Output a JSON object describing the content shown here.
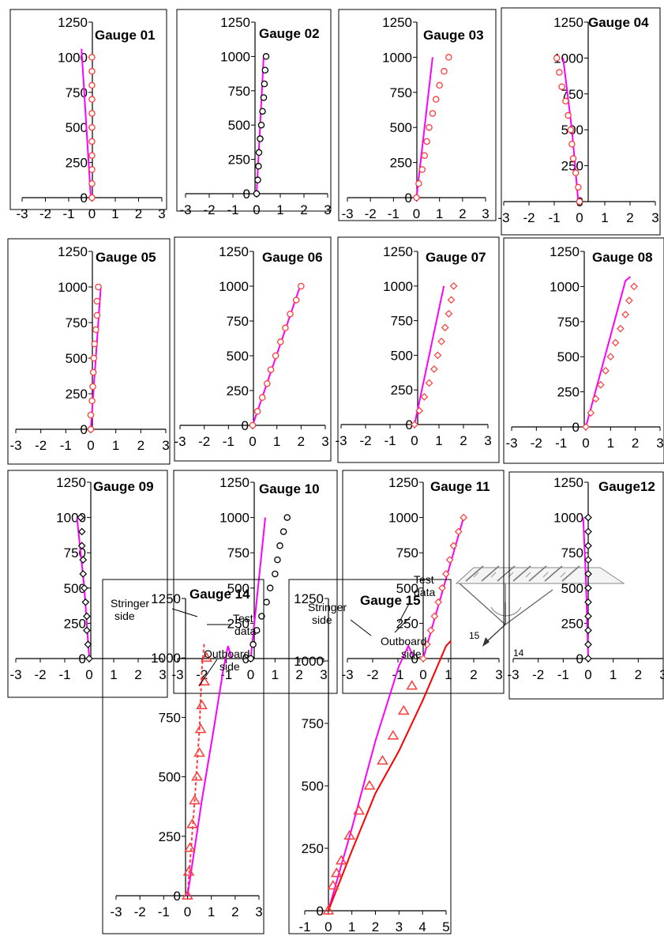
{
  "sketch": {
    "labels": [
      "15",
      "14"
    ]
  },
  "chart_data": [
    {
      "type": "scatter",
      "title": "Gauge 01",
      "xlim": [
        -3,
        3
      ],
      "ylim": [
        0,
        1250
      ],
      "xticks": [
        "-3",
        "-2",
        "-1",
        "0",
        "1",
        "2",
        "3"
      ],
      "yticks": [
        "0",
        "250",
        "500",
        "750",
        "1000",
        "1250"
      ],
      "grid": false,
      "colors": {
        "line": "#ff00ff",
        "marker": "#ff3b3b"
      },
      "markers": "circle",
      "series": [
        {
          "kind": "line",
          "x": [
            -0.05,
            -0.45
          ],
          "y": [
            0,
            1060
          ]
        },
        {
          "kind": "points",
          "x": [
            0,
            0,
            0,
            0,
            0,
            0,
            0,
            0,
            0,
            0,
            0
          ],
          "y": [
            0,
            100,
            200,
            300,
            400,
            500,
            600,
            700,
            800,
            900,
            1000
          ]
        }
      ]
    },
    {
      "type": "scatter",
      "title": "Gauge 02",
      "xlim": [
        -3,
        3
      ],
      "ylim": [
        0,
        1250
      ],
      "xticks": [
        "-3",
        "-2",
        "-1",
        "0",
        "1",
        "2",
        "3"
      ],
      "yticks": [
        "0",
        "250",
        "500",
        "750",
        "1000",
        "1250"
      ],
      "grid": false,
      "colors": {
        "line": "#ff00ff",
        "marker": "#000000"
      },
      "markers": "circle",
      "series": [
        {
          "kind": "line",
          "x": [
            0,
            0.3
          ],
          "y": [
            0,
            1000
          ]
        },
        {
          "kind": "points",
          "x": [
            0,
            0.05,
            0.08,
            0.1,
            0.15,
            0.2,
            0.25,
            0.3,
            0.33,
            0.36,
            0.4
          ],
          "y": [
            0,
            100,
            200,
            300,
            400,
            500,
            600,
            700,
            800,
            900,
            1000
          ]
        }
      ]
    },
    {
      "type": "scatter",
      "title": "Gauge 03",
      "xlim": [
        -3,
        3
      ],
      "ylim": [
        0,
        1250
      ],
      "xticks": [
        "-3",
        "-2",
        "-1",
        "0",
        "1",
        "2",
        "3"
      ],
      "yticks": [
        "0",
        "250",
        "500",
        "750",
        "1000",
        "1250"
      ],
      "grid": false,
      "colors": {
        "line": "#ff00ff",
        "marker": "#ff3b3b"
      },
      "markers": "circle",
      "series": [
        {
          "kind": "line",
          "x": [
            0,
            0.7
          ],
          "y": [
            0,
            1000
          ]
        },
        {
          "kind": "points",
          "x": [
            0,
            0.1,
            0.25,
            0.35,
            0.45,
            0.55,
            0.7,
            0.85,
            1.0,
            1.2,
            1.4
          ],
          "y": [
            0,
            100,
            200,
            300,
            400,
            500,
            600,
            700,
            800,
            900,
            1000
          ]
        }
      ]
    },
    {
      "type": "scatter",
      "title": "Gauge 04",
      "xlim": [
        -3,
        3
      ],
      "ylim": [
        0,
        1250
      ],
      "xticks": [
        "-3",
        "-2",
        "-1",
        "0",
        "1",
        "2",
        "3"
      ],
      "yticks": [
        "0",
        "250",
        "500",
        "750",
        "1000",
        "1250"
      ],
      "grid": false,
      "colors": {
        "line": "#ff00ff",
        "marker": "#ff3b3b"
      },
      "markers": "circle",
      "series": [
        {
          "kind": "line",
          "x": [
            -0.05,
            -0.3,
            -0.65
          ],
          "y": [
            0,
            500,
            1000
          ]
        },
        {
          "kind": "points",
          "x": [
            0,
            -0.05,
            -0.15,
            -0.25,
            -0.3,
            -0.35,
            -0.45,
            -0.55,
            -0.7,
            -0.8,
            -0.9
          ],
          "y": [
            0,
            100,
            200,
            300,
            400,
            500,
            600,
            700,
            800,
            900,
            1000
          ]
        }
      ]
    },
    {
      "type": "scatter",
      "title": "Gauge 05",
      "xlim": [
        -3,
        3
      ],
      "ylim": [
        0,
        1250
      ],
      "xticks": [
        "-3",
        "-2",
        "-1",
        "0",
        "1",
        "2",
        "3"
      ],
      "yticks": [
        "0",
        "250",
        "500",
        "750",
        "1000",
        "1250"
      ],
      "grid": false,
      "colors": {
        "line": "#ff00ff",
        "marker": "#ff3b3b"
      },
      "markers": "circle",
      "series": [
        {
          "kind": "line",
          "x": [
            0,
            0.4
          ],
          "y": [
            0,
            1000
          ]
        },
        {
          "kind": "points",
          "x": [
            0,
            0,
            0.05,
            0.08,
            0.1,
            0.12,
            0.15,
            0.2,
            0.25,
            0.25,
            0.3
          ],
          "y": [
            0,
            100,
            200,
            300,
            400,
            500,
            600,
            700,
            800,
            900,
            1000
          ]
        }
      ]
    },
    {
      "type": "scatter",
      "title": "Gauge 06",
      "xlim": [
        -3,
        3
      ],
      "ylim": [
        0,
        1250
      ],
      "xticks": [
        "-3",
        "-2",
        "-1",
        "0",
        "1",
        "2",
        "3"
      ],
      "yticks": [
        "0",
        "250",
        "500",
        "750",
        "1000",
        "1250"
      ],
      "grid": false,
      "colors": {
        "line": "#ff00ff",
        "marker": "#ff3b3b"
      },
      "markers": "circle",
      "series": [
        {
          "kind": "line",
          "x": [
            0,
            2.0
          ],
          "y": [
            0,
            1020
          ]
        },
        {
          "kind": "points",
          "x": [
            0,
            0.2,
            0.4,
            0.6,
            0.75,
            0.95,
            1.15,
            1.35,
            1.55,
            1.8,
            2.0
          ],
          "y": [
            0,
            100,
            200,
            300,
            400,
            500,
            600,
            700,
            800,
            900,
            1000
          ]
        }
      ]
    },
    {
      "type": "scatter",
      "title": "Gauge 07",
      "xlim": [
        -3,
        3
      ],
      "ylim": [
        0,
        1250
      ],
      "xticks": [
        "-3",
        "-2",
        "-1",
        "0",
        "1",
        "2",
        "3"
      ],
      "yticks": [
        "0",
        "250",
        "500",
        "750",
        "1000",
        "1250"
      ],
      "grid": false,
      "colors": {
        "line": "#ff00ff",
        "marker": "#ff3b3b"
      },
      "markers": "diamond",
      "series": [
        {
          "kind": "line",
          "x": [
            0,
            1.2
          ],
          "y": [
            0,
            1000
          ]
        },
        {
          "kind": "points",
          "x": [
            0,
            0.2,
            0.4,
            0.6,
            0.8,
            0.95,
            1.1,
            1.25,
            1.4,
            1.5,
            1.6
          ],
          "y": [
            0,
            100,
            200,
            300,
            400,
            500,
            600,
            700,
            800,
            900,
            1000
          ]
        }
      ]
    },
    {
      "type": "scatter",
      "title": "Gauge 08",
      "xlim": [
        -3,
        3
      ],
      "ylim": [
        0,
        1250
      ],
      "xticks": [
        "-3",
        "-2",
        "-1",
        "0",
        "1",
        "2",
        "3"
      ],
      "yticks": [
        "0",
        "250",
        "500",
        "750",
        "1000",
        "1250"
      ],
      "grid": false,
      "colors": {
        "line": "#ff00ff",
        "marker": "#ff3b3b"
      },
      "markers": "diamond",
      "series": [
        {
          "kind": "line",
          "x": [
            0,
            1.6,
            1.8
          ],
          "y": [
            0,
            1040,
            1070
          ]
        },
        {
          "kind": "points",
          "x": [
            0,
            0.2,
            0.4,
            0.6,
            0.8,
            1.0,
            1.2,
            1.4,
            1.6,
            1.75,
            1.95
          ],
          "y": [
            0,
            100,
            200,
            300,
            400,
            500,
            600,
            700,
            800,
            900,
            1000
          ]
        }
      ]
    },
    {
      "type": "scatter",
      "title": "Gauge 09",
      "xlim": [
        -3,
        3
      ],
      "ylim": [
        0,
        1250
      ],
      "xticks": [
        "-3",
        "-2",
        "-1",
        "0",
        "1",
        "2",
        "3"
      ],
      "yticks": [
        "0",
        "250",
        "500",
        "750",
        "1000",
        "1250"
      ],
      "grid": false,
      "colors": {
        "line": "#ff00ff",
        "marker": "#000000"
      },
      "markers": "diamond",
      "series": [
        {
          "kind": "line",
          "x": [
            0,
            -0.2,
            -0.5
          ],
          "y": [
            0,
            500,
            1000
          ]
        },
        {
          "kind": "points",
          "x": [
            0,
            -0.05,
            -0.1,
            -0.1,
            -0.15,
            -0.2,
            -0.25,
            -0.25,
            -0.3,
            -0.3,
            -0.35
          ],
          "y": [
            0,
            100,
            200,
            300,
            400,
            500,
            600,
            700,
            800,
            900,
            1000
          ]
        }
      ]
    },
    {
      "type": "scatter",
      "title": "Gauge 10",
      "xlim": [
        -3,
        3
      ],
      "ylim": [
        0,
        1250
      ],
      "xticks": [
        "-3",
        "-2",
        "-1",
        "0",
        "1",
        "2",
        "3"
      ],
      "yticks": [
        "0",
        "250",
        "500",
        "750",
        "1000",
        "1250"
      ],
      "grid": false,
      "colors": {
        "line": "#ff00ff",
        "marker": "#000000"
      },
      "markers": "circle",
      "series": [
        {
          "kind": "line",
          "x": [
            0,
            0.6
          ],
          "y": [
            0,
            1000
          ]
        },
        {
          "kind": "points",
          "x": [
            0,
            0.1,
            0.25,
            0.45,
            0.65,
            0.8,
            1.0,
            1.1,
            1.2,
            1.35,
            1.5
          ],
          "y": [
            0,
            100,
            200,
            300,
            400,
            500,
            600,
            700,
            800,
            900,
            1000
          ]
        }
      ]
    },
    {
      "type": "scatter",
      "title": "Gauge 11",
      "xlim": [
        -3,
        3
      ],
      "ylim": [
        0,
        1250
      ],
      "xticks": [
        "-3",
        "-2",
        "-1",
        "0",
        "1",
        "2",
        "3"
      ],
      "yticks": [
        "0",
        "250",
        "500",
        "750",
        "1000",
        "1250"
      ],
      "grid": false,
      "colors": {
        "line": "#ff00ff",
        "marker": "#ff3b3b"
      },
      "markers": "diamond",
      "series": [
        {
          "kind": "line",
          "x": [
            0,
            1.6
          ],
          "y": [
            0,
            1000
          ]
        },
        {
          "kind": "points",
          "x": [
            0,
            0.15,
            0.3,
            0.45,
            0.6,
            0.75,
            0.9,
            1.05,
            1.2,
            1.4,
            1.6
          ],
          "y": [
            0,
            100,
            200,
            300,
            400,
            500,
            600,
            700,
            800,
            900,
            1000
          ]
        }
      ]
    },
    {
      "type": "scatter",
      "title": "Gauge12",
      "xlim": [
        -3,
        3
      ],
      "ylim": [
        0,
        1250
      ],
      "xticks": [
        "-3",
        "-2",
        "-1",
        "0",
        "1",
        "2",
        "3"
      ],
      "yticks": [
        "0",
        "250",
        "500",
        "750",
        "1000",
        "1250"
      ],
      "grid": false,
      "colors": {
        "line": "#ff00ff",
        "marker": "#000000"
      },
      "markers": "diamond",
      "series": [
        {
          "kind": "line",
          "x": [
            0,
            -0.1,
            -0.2
          ],
          "y": [
            0,
            600,
            1000
          ]
        },
        {
          "kind": "points",
          "x": [
            0,
            0,
            0,
            0,
            0,
            0,
            0,
            0,
            0,
            0,
            0
          ],
          "y": [
            0,
            100,
            200,
            300,
            400,
            500,
            600,
            700,
            800,
            900,
            1000
          ]
        }
      ]
    },
    {
      "type": "line",
      "title": "Gauge 14",
      "xlim": [
        -3,
        3
      ],
      "ylim": [
        0,
        1250
      ],
      "xticks": [
        "-3",
        "-2",
        "-1",
        "0",
        "1",
        "2",
        "3"
      ],
      "yticks": [
        "0",
        "250",
        "500",
        "750",
        "1000",
        "1250"
      ],
      "grid": false,
      "markers": "triangle",
      "annotations": [
        {
          "text": "Stringer",
          "series": 0
        },
        {
          "text": "side",
          "series": 0
        },
        {
          "text": "Test",
          "series": 2
        },
        {
          "text": "data",
          "series": 2
        },
        {
          "text": "Outboard",
          "series": 1
        },
        {
          "text": "side",
          "series": 1
        }
      ],
      "series": [
        {
          "kind": "line",
          "dash": true,
          "color": "#ff3b3b",
          "x": [
            0,
            0.3,
            0.5,
            0.6,
            0.7
          ],
          "y": [
            0,
            400,
            700,
            950,
            1060
          ]
        },
        {
          "kind": "line",
          "color": "#ff00ff",
          "x": [
            0,
            0.6,
            1.1,
            1.5,
            1.7,
            1.85
          ],
          "y": [
            0,
            400,
            700,
            950,
            1050,
            1000
          ]
        },
        {
          "kind": "points",
          "color": "#ff3b3b",
          "x": [
            0,
            0.05,
            0.1,
            0.2,
            0.3,
            0.4,
            0.5,
            0.55,
            0.6,
            0.7,
            0.8
          ],
          "y": [
            0,
            100,
            200,
            300,
            400,
            500,
            600,
            700,
            800,
            900,
            1000
          ]
        }
      ]
    },
    {
      "type": "line",
      "title": "Gauge 15",
      "xlim": [
        -1,
        5
      ],
      "ylim": [
        0,
        1250
      ],
      "xticks": [
        "-1",
        "0",
        "1",
        "2",
        "3",
        "4",
        "5"
      ],
      "yticks": [
        "0",
        "250",
        "500",
        "750",
        "1000",
        "1250"
      ],
      "grid": false,
      "markers": "triangle",
      "annotations": [
        {
          "text": "Stringer",
          "series": 0
        },
        {
          "text": "side",
          "series": 0
        },
        {
          "text": "Test",
          "series": 2
        },
        {
          "text": "data",
          "series": 2
        },
        {
          "text": "Outboard",
          "series": 1
        },
        {
          "text": "side",
          "series": 1
        }
      ],
      "series": [
        {
          "kind": "line",
          "color": "#ff00ff",
          "x": [
            0,
            1,
            2,
            3,
            3.4,
            3.6
          ],
          "y": [
            0,
            330,
            680,
            980,
            1060,
            1020
          ]
        },
        {
          "kind": "line",
          "color": "#ff0000",
          "x": [
            0,
            1,
            2,
            3,
            4,
            4.5,
            5.0,
            5.2
          ],
          "y": [
            0,
            240,
            470,
            640,
            840,
            950,
            1060,
            1080
          ]
        },
        {
          "kind": "points",
          "color": "#ff3b3b",
          "x": [
            0,
            0.2,
            0.35,
            0.55,
            0.9,
            1.3,
            1.75,
            2.3,
            2.75,
            3.2,
            3.55
          ],
          "y": [
            0,
            100,
            150,
            200,
            300,
            400,
            500,
            600,
            700,
            800,
            900
          ]
        }
      ]
    }
  ]
}
